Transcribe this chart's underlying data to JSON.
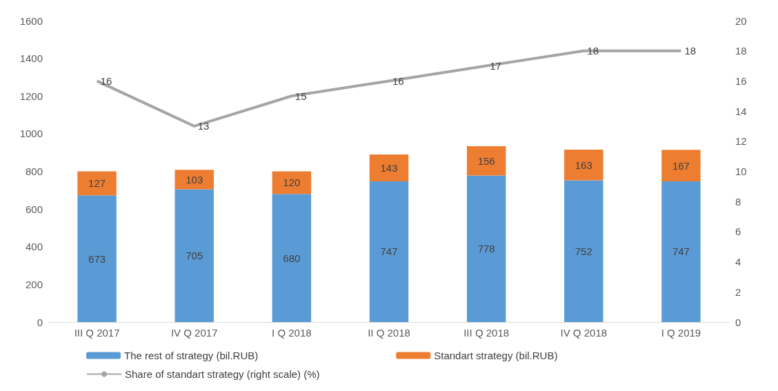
{
  "chart_data": {
    "type": "bar",
    "stacked": true,
    "categories": [
      "III Q 2017",
      "IV Q 2017",
      "I Q 2018",
      "II Q 2018",
      "III Q 2018",
      "IV Q 2018",
      "I Q 2019"
    ],
    "series": [
      {
        "name": "The rest of strategy (bil.RUB)",
        "color": "#5b9bd5",
        "values": [
          673,
          705,
          680,
          747,
          778,
          752,
          747
        ]
      },
      {
        "name": "Standart strategy (bil.RUB)",
        "color": "#ed7d31",
        "values": [
          127,
          103,
          120,
          143,
          156,
          163,
          167
        ]
      },
      {
        "name": "Share of standart strategy (right scale) (%)",
        "type": "line",
        "axis": "y2",
        "color": "#a5a5a5",
        "values": [
          16,
          13,
          15,
          16,
          17,
          18,
          18
        ]
      }
    ],
    "ylim": [
      0,
      1600
    ],
    "yticks": [
      0,
      200,
      400,
      600,
      800,
      1000,
      1200,
      1400,
      1600
    ],
    "y2lim": [
      0,
      20
    ],
    "y2ticks": [
      0,
      2,
      4,
      6,
      8,
      10,
      12,
      14,
      16,
      18,
      20
    ],
    "data_labels": true,
    "legend": "bottom",
    "marker": "none",
    "line_style": "solid"
  }
}
